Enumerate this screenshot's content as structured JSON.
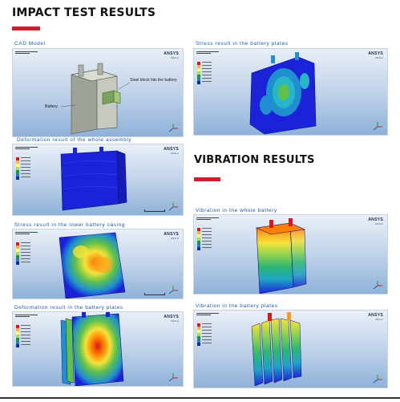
{
  "headings": {
    "impact": "IMPACT TEST RESULTS",
    "vibration": "VIBRATION  RESULTS"
  },
  "captions": {
    "cad": "CAD Model",
    "deformation_assembly": "Deformation result of the whole assembly",
    "stress_lower_casing": "Stress result in the lower battery casing",
    "deformation_plates": "Deformation result in the battery plates",
    "stress_plates": "Stress result in the battery plates",
    "vibration_whole": "Vibration in the whole battery",
    "vibration_plates": "Vibration in the battery plates"
  },
  "cad_labels": {
    "steel_block": "Steel block hits the battery",
    "battery": "Battery"
  },
  "brand": "ANSYS",
  "colors": {
    "accent_red": "#c8232c",
    "caption_blue": "#1a58a8"
  }
}
